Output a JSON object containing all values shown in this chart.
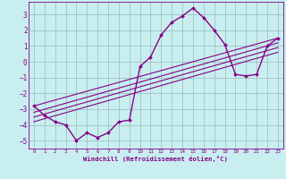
{
  "xlabel": "Windchill (Refroidissement éolien,°C)",
  "xlim": [
    -0.5,
    23.5
  ],
  "ylim": [
    -5.5,
    3.8
  ],
  "yticks": [
    -5,
    -4,
    -3,
    -2,
    -1,
    0,
    1,
    2,
    3
  ],
  "xticks": [
    0,
    1,
    2,
    3,
    4,
    5,
    6,
    7,
    8,
    9,
    10,
    11,
    12,
    13,
    14,
    15,
    16,
    17,
    18,
    19,
    20,
    21,
    22,
    23
  ],
  "bg_color": "#c8eef0",
  "line_color": "#880088",
  "grid_color": "#99bbbb",
  "data_line": {
    "x": [
      0,
      1,
      2,
      3,
      4,
      5,
      6,
      7,
      8,
      9,
      10,
      11,
      12,
      13,
      14,
      15,
      16,
      17,
      18,
      19,
      20,
      21,
      22,
      23
    ],
    "y": [
      -2.8,
      -3.4,
      -3.8,
      -4.0,
      -5.0,
      -4.5,
      -4.8,
      -4.5,
      -3.8,
      -3.7,
      -0.3,
      0.3,
      1.7,
      2.5,
      2.9,
      3.4,
      2.8,
      2.0,
      1.1,
      -0.8,
      -0.9,
      -0.8,
      1.0,
      1.5
    ],
    "marker": "D",
    "markersize": 2.0,
    "linewidth": 1.0
  },
  "straight_lines": [
    {
      "x": [
        0,
        23
      ],
      "y": [
        -2.8,
        1.5
      ]
    },
    {
      "x": [
        0,
        23
      ],
      "y": [
        -3.2,
        1.2
      ]
    },
    {
      "x": [
        0,
        23
      ],
      "y": [
        -3.5,
        0.9
      ]
    },
    {
      "x": [
        0,
        23
      ],
      "y": [
        -3.8,
        0.6
      ]
    }
  ]
}
